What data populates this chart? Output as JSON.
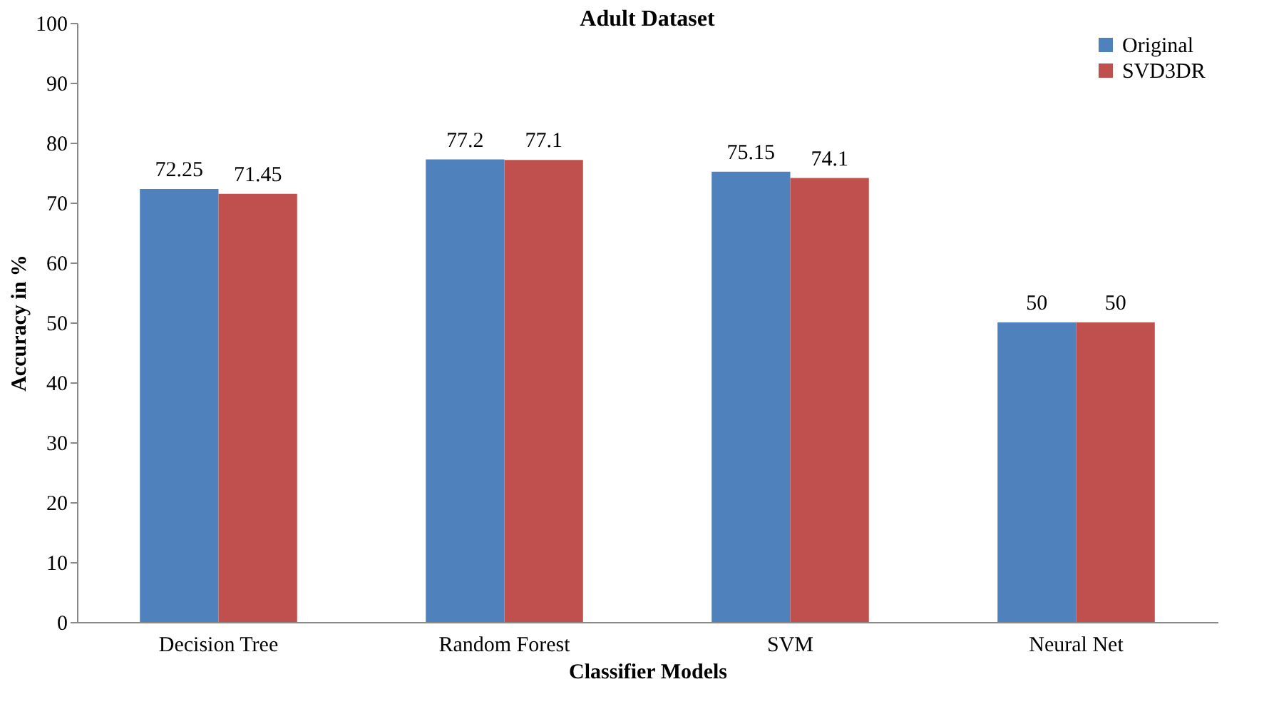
{
  "chart_data": {
    "type": "bar",
    "title": "Adult Dataset",
    "xlabel": "Classifier Models",
    "ylabel": "Accuracy in %",
    "categories": [
      "Decision Tree",
      "Random Forest",
      "SVM",
      "Neural Net"
    ],
    "series": [
      {
        "name": "Original",
        "color": "#4f81bd",
        "values": [
          72.25,
          77.2,
          75.15,
          50
        ]
      },
      {
        "name": "SVD3DR",
        "color": "#c0504d",
        "values": [
          71.45,
          77.1,
          74.1,
          50
        ]
      }
    ],
    "ylim": [
      0,
      100
    ],
    "yticks": [
      0,
      10,
      20,
      30,
      40,
      50,
      60,
      70,
      80,
      90,
      100
    ],
    "data_labels": true,
    "legend": "top right",
    "grid": false
  }
}
